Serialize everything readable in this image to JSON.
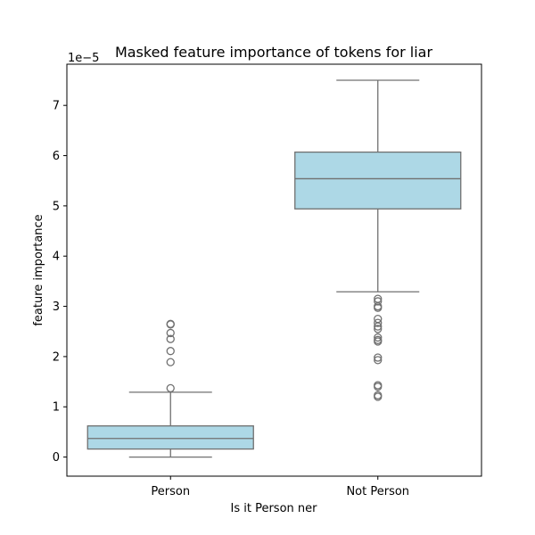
{
  "chart_data": {
    "type": "box",
    "title": "Masked feature importance of tokens for liar",
    "xlabel": "Is it Person ner",
    "ylabel": "feature importance",
    "y_offset_label": "1e−5",
    "ylim": [
      -0.38,
      7.82
    ],
    "yticks": [
      0,
      1,
      2,
      3,
      4,
      5,
      6,
      7
    ],
    "ytick_labels": [
      "0",
      "1",
      "2",
      "3",
      "4",
      "5",
      "6",
      "7"
    ],
    "grid": false,
    "box_color": "#add8e6",
    "line_color": "#707070",
    "categories": [
      "Person",
      "Not Person"
    ],
    "boxes": [
      {
        "category": "Person",
        "whisker_low": 0.0,
        "q1": 0.16,
        "median": 0.37,
        "q3": 0.62,
        "whisker_high": 1.29,
        "outliers": [
          1.37,
          1.89,
          2.11,
          2.35,
          2.47,
          2.64,
          2.65
        ]
      },
      {
        "category": "Not Person",
        "whisker_low": 3.29,
        "q1": 4.94,
        "median": 5.54,
        "q3": 6.07,
        "whisker_high": 7.5,
        "outliers": [
          3.15,
          3.1,
          3.0,
          2.97,
          2.75,
          2.67,
          2.6,
          2.55,
          2.38,
          2.33,
          2.3,
          1.98,
          1.93,
          1.43,
          1.4,
          1.23,
          1.2
        ]
      }
    ]
  }
}
